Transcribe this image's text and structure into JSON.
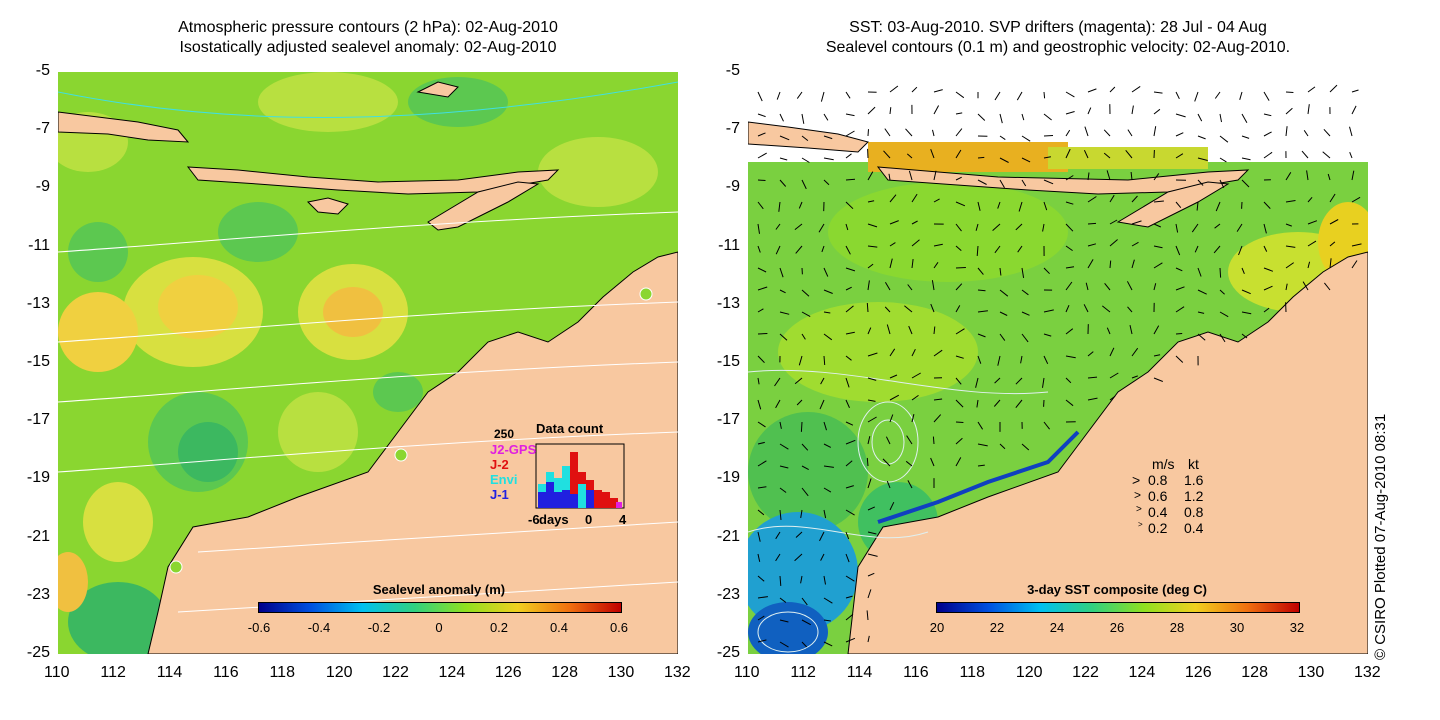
{
  "left_panel": {
    "title_line1": "Atmospheric pressure contours (2 hPa): 02-Aug-2010",
    "title_line2": "Isostatically adjusted sealevel anomaly: 02-Aug-2010",
    "colorbar": {
      "title": "Sealevel anomaly (m)",
      "ticks": [
        "-0.6",
        "-0.4",
        "-0.2",
        "0",
        "0.2",
        "0.4",
        "0.6"
      ]
    },
    "data_count": {
      "title": "Data count",
      "ymax_label": "250",
      "legend": [
        {
          "label": "J2-GPS",
          "color": "#e020e0"
        },
        {
          "label": "J-2",
          "color": "#e01010"
        },
        {
          "label": "Envi",
          "color": "#20e0e0"
        },
        {
          "label": "J-1",
          "color": "#2020e0"
        }
      ],
      "xaxis_label": "days",
      "xticks": [
        "-6",
        "0",
        "4"
      ]
    }
  },
  "right_panel": {
    "title_line1": "SST: 03-Aug-2010. SVP drifters (magenta): 28 Jul - 04 Aug",
    "title_line2": "Sealevel contours (0.1 m) and geostrophic velocity: 02-Aug-2010.",
    "colorbar": {
      "title": "3-day SST composite (deg C)",
      "ticks": [
        "20",
        "22",
        "24",
        "26",
        "28",
        "30",
        "32"
      ]
    },
    "speed_legend": {
      "header_ms": "m/s",
      "header_kt": "kt",
      "rows": [
        {
          "ms": "0.8",
          "kt": "1.6"
        },
        {
          "ms": "0.6",
          "kt": "1.2"
        },
        {
          "ms": "0.4",
          "kt": "0.8"
        },
        {
          "ms": "0.2",
          "kt": "0.4"
        }
      ]
    }
  },
  "axes": {
    "lon_ticks": [
      "110",
      "112",
      "114",
      "116",
      "118",
      "120",
      "122",
      "124",
      "126",
      "128",
      "130",
      "132"
    ],
    "lat_ticks": [
      "-5",
      "-7",
      "-9",
      "-11",
      "-13",
      "-15",
      "-17",
      "-19",
      "-21",
      "-23",
      "-25"
    ]
  },
  "credit": "© CSIRO Plotted 07-Aug-2010 08:31",
  "colors": {
    "land": "#f8c8a0",
    "ocean_base": "#8ad630"
  }
}
